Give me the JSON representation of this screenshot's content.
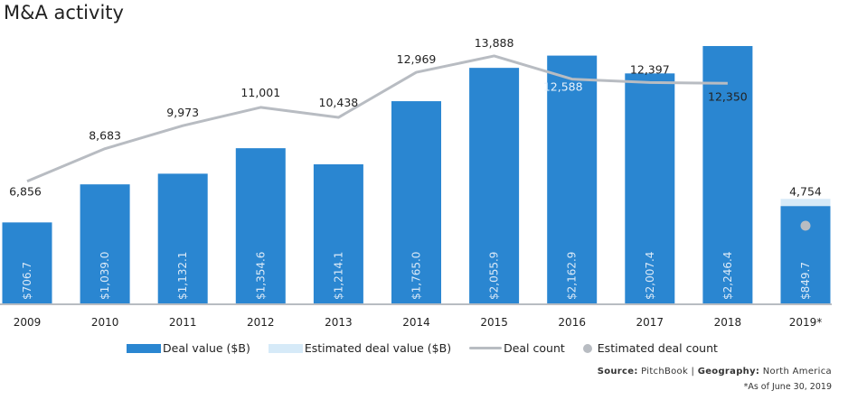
{
  "chart_data": {
    "type": "bar",
    "title": "M&A activity",
    "categories": [
      "2009",
      "2010",
      "2011",
      "2012",
      "2013",
      "2014",
      "2015",
      "2016",
      "2017",
      "2018",
      "2019*"
    ],
    "series": [
      {
        "name": "Deal value ($B)",
        "type": "bar",
        "values": [
          706.7,
          1039.0,
          1132.1,
          1354.6,
          1214.1,
          1765.0,
          2055.9,
          2162.9,
          2007.4,
          2246.4,
          849.7
        ],
        "labels": [
          "$706.7",
          "$1,039.0",
          "$1,132.1",
          "$1,354.6",
          "$1,214.1",
          "$1,765.0",
          "$2,055.9",
          "$2,162.9",
          "$2,007.4",
          "$2,246.4",
          "$849.7"
        ],
        "color": "#2a86d1"
      },
      {
        "name": "Estimated deal value ($B)",
        "type": "bar",
        "values": [
          null,
          null,
          null,
          null,
          null,
          null,
          null,
          null,
          null,
          null,
          912
        ],
        "color": "#d6eaf8"
      },
      {
        "name": "Deal count",
        "type": "line",
        "values": [
          6856,
          8683,
          9973,
          11001,
          10438,
          12969,
          13888,
          12588,
          12397,
          12350,
          null
        ],
        "labels": [
          "6,856",
          "8,683",
          "9,973",
          "11,001",
          "10,438",
          "12,969",
          "13,888",
          "12,588",
          "12,397",
          "12,350",
          ""
        ],
        "color": "#b8bcc2"
      },
      {
        "name": "Estimated deal count",
        "type": "scatter",
        "values": [
          null,
          null,
          null,
          null,
          null,
          null,
          null,
          null,
          null,
          null,
          4754
        ],
        "labels": [
          "",
          "",
          "",
          "",
          "",
          "",
          "",
          "",
          "",
          "",
          "4,754"
        ],
        "color": "#b8bcc2"
      }
    ],
    "ylim_value": [
      0,
      2333
    ],
    "ylim_count": [
      0,
      15000
    ],
    "grid": false,
    "legend": "bottom"
  },
  "footer": {
    "source_label": "Source:",
    "source": "PitchBook",
    "geo_label": "Geography:",
    "geo": "North America",
    "note": "*As of June 30, 2019"
  }
}
